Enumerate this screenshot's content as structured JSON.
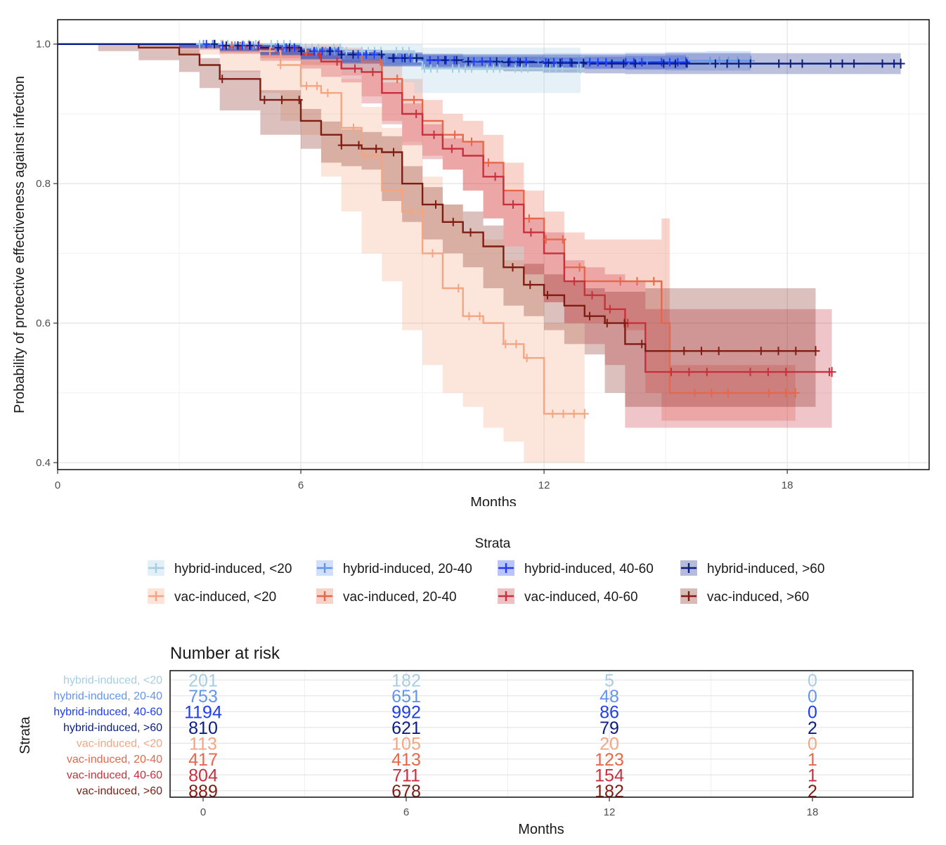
{
  "chart_data": [
    {
      "type": "line",
      "subtype": "kaplan-meier survival curves with confidence bands and censor marks",
      "xlabel": "Months",
      "ylabel": "Probability of protective effectiveness against infection",
      "xlim": [
        0,
        21.5
      ],
      "ylim": [
        0.39,
        1.035
      ],
      "x_ticks": [
        0,
        6,
        12,
        18
      ],
      "y_ticks": [
        0.4,
        0.6,
        0.8,
        1.0
      ],
      "y_tick_labels": [
        "0.4",
        "0.6",
        "0.8",
        "1.0"
      ],
      "grid": true,
      "legend_title": "Strata",
      "legend_position": "bottom",
      "series": [
        {
          "name": "hybrid-induced, <20",
          "color": "#a6cee3",
          "x": [
            0,
            1,
            2,
            3,
            4,
            5,
            6,
            7,
            8,
            8.8,
            9,
            10,
            11,
            12,
            12.9
          ],
          "y": [
            1.0,
            1.0,
            1.0,
            1.0,
            1.0,
            1.0,
            0.995,
            0.99,
            0.99,
            0.975,
            0.965,
            0.965,
            0.965,
            0.965,
            0.965
          ],
          "lower": [
            1.0,
            1.0,
            1.0,
            0.998,
            0.995,
            0.99,
            0.985,
            0.975,
            0.96,
            0.945,
            0.93,
            0.93,
            0.93,
            0.93,
            0.93
          ],
          "upper": [
            1.0,
            1.0,
            1.0,
            1.0,
            1.0,
            1.0,
            1.0,
            1.0,
            1.0,
            1.0,
            0.995,
            0.995,
            0.995,
            0.995,
            0.995
          ]
        },
        {
          "name": "hybrid-induced, 20-40",
          "color": "#6495ed",
          "x": [
            0,
            1,
            2,
            3,
            4,
            5,
            6,
            7,
            8,
            9,
            10,
            11,
            12,
            13,
            14,
            15,
            16,
            17.1
          ],
          "y": [
            1.0,
            1.0,
            1.0,
            1.0,
            0.998,
            0.995,
            0.99,
            0.985,
            0.98,
            0.977,
            0.976,
            0.976,
            0.976,
            0.976,
            0.976,
            0.976,
            0.976,
            0.976
          ],
          "lower": [
            1.0,
            1.0,
            1.0,
            0.998,
            0.994,
            0.99,
            0.984,
            0.978,
            0.972,
            0.968,
            0.966,
            0.966,
            0.965,
            0.965,
            0.964,
            0.963,
            0.962,
            0.962
          ],
          "upper": [
            1.0,
            1.0,
            1.0,
            1.0,
            1.0,
            1.0,
            0.996,
            0.992,
            0.988,
            0.986,
            0.986,
            0.986,
            0.987,
            0.987,
            0.988,
            0.989,
            0.99,
            0.99
          ]
        },
        {
          "name": "hybrid-induced, 40-60",
          "color": "#1e3cf0",
          "x": [
            0,
            1,
            2,
            3,
            4,
            5,
            6,
            7,
            8,
            9,
            10,
            11,
            12,
            13,
            14,
            15,
            15.5
          ],
          "y": [
            1.0,
            1.0,
            1.0,
            1.0,
            0.998,
            0.995,
            0.99,
            0.985,
            0.98,
            0.977,
            0.975,
            0.975,
            0.974,
            0.974,
            0.974,
            0.974,
            0.974
          ],
          "lower": [
            1.0,
            1.0,
            1.0,
            0.999,
            0.995,
            0.991,
            0.985,
            0.979,
            0.974,
            0.97,
            0.968,
            0.968,
            0.967,
            0.966,
            0.965,
            0.964,
            0.964
          ],
          "upper": [
            1.0,
            1.0,
            1.0,
            1.0,
            1.0,
            0.999,
            0.995,
            0.991,
            0.986,
            0.984,
            0.982,
            0.982,
            0.981,
            0.982,
            0.983,
            0.984,
            0.984
          ]
        },
        {
          "name": "hybrid-induced, >60",
          "color": "#0a1e82",
          "x": [
            0,
            1,
            2,
            3,
            4,
            5,
            6,
            7,
            8,
            9,
            10,
            11,
            12,
            13,
            14,
            15,
            16,
            17,
            18,
            19,
            20,
            20.8
          ],
          "y": [
            1.0,
            1.0,
            1.0,
            1.0,
            0.998,
            0.995,
            0.99,
            0.985,
            0.98,
            0.977,
            0.975,
            0.974,
            0.973,
            0.972,
            0.972,
            0.972,
            0.972,
            0.972,
            0.972,
            0.972,
            0.972,
            0.972
          ],
          "lower": [
            1.0,
            1.0,
            1.0,
            0.999,
            0.994,
            0.99,
            0.984,
            0.978,
            0.972,
            0.968,
            0.965,
            0.963,
            0.961,
            0.959,
            0.958,
            0.957,
            0.957,
            0.957,
            0.957,
            0.957,
            0.957,
            0.957
          ],
          "upper": [
            1.0,
            1.0,
            1.0,
            1.0,
            1.0,
            1.0,
            0.996,
            0.992,
            0.988,
            0.986,
            0.985,
            0.985,
            0.985,
            0.985,
            0.986,
            0.987,
            0.987,
            0.987,
            0.987,
            0.987,
            0.987,
            0.987
          ]
        },
        {
          "name": "vac-induced, <20",
          "color": "#f4a582",
          "x": [
            0,
            1,
            2,
            3,
            4,
            5,
            5.5,
            6,
            6.5,
            7,
            7.5,
            8,
            8.5,
            9,
            9.5,
            10,
            10.5,
            11,
            11.5,
            12,
            12.5,
            13.0
          ],
          "y": [
            1.0,
            1.0,
            1.0,
            1.0,
            1.0,
            0.99,
            0.97,
            0.94,
            0.93,
            0.88,
            0.84,
            0.79,
            0.76,
            0.7,
            0.65,
            0.61,
            0.6,
            0.57,
            0.55,
            0.47,
            0.47,
            0.47
          ],
          "lower": [
            1.0,
            1.0,
            1.0,
            0.998,
            0.985,
            0.96,
            0.93,
            0.89,
            0.87,
            0.81,
            0.76,
            0.7,
            0.66,
            0.59,
            0.54,
            0.5,
            0.48,
            0.45,
            0.43,
            0.4,
            0.4,
            0.4
          ],
          "upper": [
            1.0,
            1.0,
            1.0,
            1.0,
            1.0,
            1.0,
            1.0,
            0.99,
            0.98,
            0.95,
            0.91,
            0.88,
            0.86,
            0.81,
            0.77,
            0.73,
            0.72,
            0.69,
            0.67,
            0.6,
            0.6,
            0.6
          ]
        },
        {
          "name": "vac-induced, 20-40",
          "color": "#e8664a",
          "x": [
            0,
            1,
            2,
            3,
            4,
            5,
            6,
            7,
            7.5,
            8,
            8.5,
            9,
            9.5,
            10,
            10.5,
            11,
            11.5,
            12,
            12.5,
            13,
            13.5,
            14,
            14.5,
            14.9,
            15.1,
            16,
            17,
            18.2
          ],
          "y": [
            1.0,
            1.0,
            1.0,
            1.0,
            0.998,
            0.995,
            0.99,
            0.985,
            0.975,
            0.95,
            0.92,
            0.89,
            0.87,
            0.86,
            0.83,
            0.79,
            0.75,
            0.72,
            0.68,
            0.66,
            0.66,
            0.66,
            0.66,
            0.6,
            0.5,
            0.5,
            0.5,
            0.5
          ],
          "lower": [
            1.0,
            1.0,
            1.0,
            0.998,
            0.994,
            0.988,
            0.98,
            0.97,
            0.955,
            0.925,
            0.89,
            0.86,
            0.84,
            0.82,
            0.79,
            0.75,
            0.71,
            0.67,
            0.63,
            0.6,
            0.6,
            0.6,
            0.59,
            0.5,
            0.46,
            0.46,
            0.46,
            0.46
          ],
          "upper": [
            1.0,
            1.0,
            1.0,
            1.0,
            1.0,
            1.0,
            1.0,
            0.995,
            0.99,
            0.97,
            0.95,
            0.92,
            0.9,
            0.89,
            0.87,
            0.83,
            0.79,
            0.76,
            0.73,
            0.72,
            0.72,
            0.72,
            0.72,
            0.75,
            0.54,
            0.54,
            0.54,
            0.54
          ]
        },
        {
          "name": "vac-induced, 40-60",
          "color": "#c8303c",
          "x": [
            0,
            1,
            2,
            3,
            4,
            5,
            6,
            6.5,
            7,
            7.5,
            8,
            8.5,
            9,
            9.5,
            10,
            10.5,
            11,
            11.5,
            12,
            12.5,
            13,
            13.5,
            14,
            14.5,
            15,
            16,
            17,
            18,
            19.1
          ],
          "y": [
            1.0,
            1.0,
            1.0,
            1.0,
            0.997,
            0.993,
            0.985,
            0.975,
            0.965,
            0.96,
            0.93,
            0.9,
            0.87,
            0.85,
            0.84,
            0.81,
            0.77,
            0.73,
            0.7,
            0.66,
            0.64,
            0.62,
            0.6,
            0.53,
            0.53,
            0.53,
            0.53,
            0.53,
            0.53
          ],
          "lower": [
            1.0,
            1.0,
            1.0,
            0.998,
            0.992,
            0.986,
            0.976,
            0.965,
            0.953,
            0.945,
            0.915,
            0.885,
            0.855,
            0.835,
            0.82,
            0.79,
            0.75,
            0.71,
            0.67,
            0.63,
            0.6,
            0.57,
            0.54,
            0.45,
            0.45,
            0.45,
            0.45,
            0.45,
            0.45
          ],
          "upper": [
            1.0,
            1.0,
            1.0,
            1.0,
            1.0,
            1.0,
            0.994,
            0.985,
            0.977,
            0.975,
            0.945,
            0.915,
            0.885,
            0.865,
            0.86,
            0.83,
            0.79,
            0.75,
            0.73,
            0.69,
            0.68,
            0.67,
            0.66,
            0.62,
            0.62,
            0.62,
            0.62,
            0.62,
            0.62
          ]
        },
        {
          "name": "vac-induced, >60",
          "color": "#7f1d12",
          "x": [
            0,
            1,
            2,
            3,
            3.5,
            4,
            5,
            6,
            6.5,
            7,
            7.5,
            8,
            8.5,
            9,
            9.5,
            10,
            10.5,
            11,
            11.5,
            12,
            12.5,
            13,
            13.5,
            14,
            14.5,
            15,
            16,
            17,
            18,
            18.7
          ],
          "y": [
            1.0,
            1.0,
            0.995,
            0.985,
            0.97,
            0.95,
            0.92,
            0.89,
            0.87,
            0.855,
            0.85,
            0.845,
            0.8,
            0.77,
            0.745,
            0.73,
            0.71,
            0.68,
            0.655,
            0.64,
            0.625,
            0.61,
            0.6,
            0.57,
            0.56,
            0.56,
            0.56,
            0.56,
            0.56,
            0.56
          ],
          "lower": [
            1.0,
            1.0,
            0.99,
            0.977,
            0.96,
            0.937,
            0.905,
            0.87,
            0.85,
            0.83,
            0.825,
            0.82,
            0.775,
            0.745,
            0.72,
            0.7,
            0.68,
            0.65,
            0.625,
            0.61,
            0.59,
            0.57,
            0.555,
            0.5,
            0.48,
            0.48,
            0.48,
            0.48,
            0.48,
            0.48
          ],
          "upper": [
            1.0,
            1.0,
            0.999,
            0.992,
            0.98,
            0.962,
            0.934,
            0.907,
            0.889,
            0.878,
            0.874,
            0.868,
            0.825,
            0.795,
            0.77,
            0.76,
            0.74,
            0.71,
            0.685,
            0.67,
            0.66,
            0.65,
            0.645,
            0.645,
            0.65,
            0.65,
            0.65,
            0.65,
            0.65,
            0.65
          ]
        }
      ]
    },
    {
      "type": "table",
      "title": "Number at risk",
      "xlabel": "Months",
      "ylabel": "Strata",
      "x_ticks": [
        0,
        6,
        12,
        18
      ],
      "rows": [
        {
          "label": "hybrid-induced, <20",
          "color": "#a6cee3",
          "values": [
            201,
            182,
            5,
            0
          ]
        },
        {
          "label": "hybrid-induced, 20-40",
          "color": "#6495ed",
          "values": [
            753,
            651,
            48,
            0
          ]
        },
        {
          "label": "hybrid-induced, 40-60",
          "color": "#1e3cf0",
          "values": [
            1194,
            992,
            86,
            0
          ]
        },
        {
          "label": "hybrid-induced, >60",
          "color": "#0a1e82",
          "values": [
            810,
            621,
            79,
            2
          ]
        },
        {
          "label": "vac-induced, <20",
          "color": "#f4a582",
          "values": [
            113,
            105,
            20,
            0
          ]
        },
        {
          "label": "vac-induced, 20-40",
          "color": "#e8664a",
          "values": [
            417,
            413,
            123,
            1
          ]
        },
        {
          "label": "vac-induced, 40-60",
          "color": "#c8303c",
          "values": [
            804,
            711,
            154,
            1
          ]
        },
        {
          "label": "vac-induced, >60",
          "color": "#7f1d12",
          "values": [
            889,
            678,
            182,
            2
          ]
        }
      ]
    }
  ]
}
